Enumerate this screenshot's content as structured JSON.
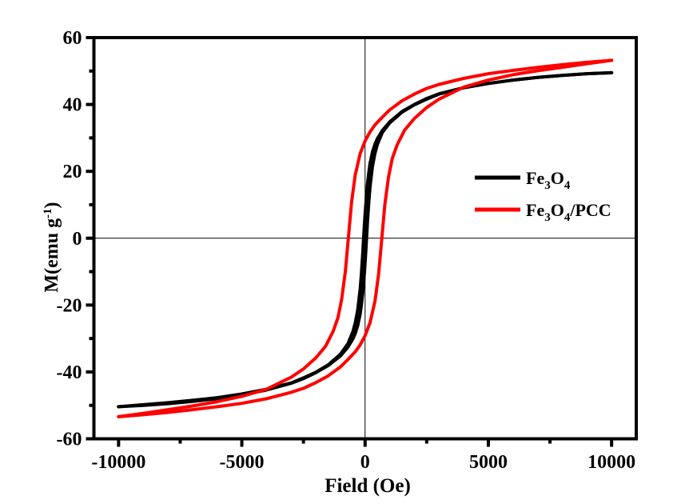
{
  "figure": {
    "background_color": "#ffffff",
    "axis_color": "#000000"
  },
  "chart_data": {
    "type": "line",
    "title": "",
    "xlabel": "Field (Oe)",
    "ylabel": "M(emu g-1)",
    "ylabel_parts": {
      "main": "M(emu g",
      "sup": "-1",
      "close": ")"
    },
    "xlim": [
      -11000,
      11000
    ],
    "ylim": [
      -60,
      60
    ],
    "x_major_ticks": [
      -10000,
      -5000,
      0,
      5000,
      10000
    ],
    "x_tick_labels": [
      "-10000",
      "-5000",
      "0",
      "5000",
      "10000"
    ],
    "x_minor_ticks": [
      -7500,
      -2500,
      2500,
      7500
    ],
    "y_major_ticks": [
      60,
      40,
      20,
      0,
      -20,
      -40,
      -60
    ],
    "y_tick_labels": [
      "60",
      "40",
      "20",
      "0",
      "-20",
      "-40",
      "-60"
    ],
    "y_minor_ticks": [
      50,
      30,
      10,
      -10,
      -30,
      -50
    ],
    "grid": "off",
    "zero_cross_lines": true,
    "legend": {
      "position": "middle-right",
      "entries": [
        "Fe3O4",
        "Fe3O4/PCC"
      ]
    },
    "series": [
      {
        "name": "Fe3O4",
        "color": "#000000",
        "label_parts": {
          "p1": "Fe",
          "s1": "3",
          "p2": "O",
          "s2": "4",
          "p3": ""
        },
        "ascending": [
          [
            -10000,
            -50.4
          ],
          [
            -9000,
            -50.0
          ],
          [
            -8000,
            -49.5
          ],
          [
            -7000,
            -48.8
          ],
          [
            -6000,
            -48.0
          ],
          [
            -5000,
            -46.9
          ],
          [
            -4000,
            -45.4
          ],
          [
            -3000,
            -43.4
          ],
          [
            -2500,
            -42.0
          ],
          [
            -2000,
            -40.2
          ],
          [
            -1500,
            -38.1
          ],
          [
            -1000,
            -35.2
          ],
          [
            -700,
            -32.6
          ],
          [
            -500,
            -30.2
          ],
          [
            -400,
            -28.5
          ],
          [
            -300,
            -26.2
          ],
          [
            -200,
            -22.7
          ],
          [
            -150,
            -20.0
          ],
          [
            -100,
            -16.7
          ],
          [
            -50,
            -12.6
          ],
          [
            0,
            -7.3
          ],
          [
            30,
            -3.8
          ],
          [
            60,
            0
          ],
          [
            100,
            5.0
          ],
          [
            150,
            10.7
          ],
          [
            200,
            15.2
          ],
          [
            300,
            21.5
          ],
          [
            400,
            25.4
          ],
          [
            500,
            28.1
          ],
          [
            700,
            31.6
          ],
          [
            1000,
            34.5
          ],
          [
            1500,
            37.7
          ],
          [
            2000,
            39.9
          ],
          [
            2500,
            41.6
          ],
          [
            3000,
            43.1
          ],
          [
            4000,
            45.0
          ],
          [
            5000,
            46.3
          ],
          [
            6000,
            47.3
          ],
          [
            7000,
            48.1
          ],
          [
            8000,
            48.7
          ],
          [
            9000,
            49.2
          ],
          [
            10000,
            49.5
          ]
        ],
        "descending": [
          [
            10000,
            49.5
          ],
          [
            9000,
            49.2
          ],
          [
            8000,
            48.7
          ],
          [
            7000,
            48.1
          ],
          [
            6000,
            47.3
          ],
          [
            5000,
            46.3
          ],
          [
            4000,
            45.0
          ],
          [
            3000,
            43.2
          ],
          [
            2500,
            41.8
          ],
          [
            2000,
            40.0
          ],
          [
            1500,
            37.9
          ],
          [
            1000,
            34.8
          ],
          [
            700,
            32.2
          ],
          [
            500,
            29.8
          ],
          [
            400,
            28.1
          ],
          [
            300,
            25.8
          ],
          [
            200,
            22.3
          ],
          [
            150,
            19.6
          ],
          [
            100,
            16.3
          ],
          [
            50,
            12.2
          ],
          [
            0,
            7.3
          ],
          [
            -30,
            3.8
          ],
          [
            -60,
            0
          ],
          [
            -100,
            -5.0
          ],
          [
            -150,
            -10.7
          ],
          [
            -200,
            -15.2
          ],
          [
            -300,
            -21.5
          ],
          [
            -400,
            -25.4
          ],
          [
            -500,
            -28.1
          ],
          [
            -700,
            -31.6
          ],
          [
            -1000,
            -34.7
          ],
          [
            -1500,
            -37.9
          ],
          [
            -2000,
            -40.1
          ],
          [
            -2500,
            -41.8
          ],
          [
            -3000,
            -43.3
          ],
          [
            -4000,
            -45.2
          ],
          [
            -5000,
            -46.6
          ],
          [
            -6000,
            -47.7
          ],
          [
            -7000,
            -48.5
          ],
          [
            -8000,
            -49.2
          ],
          [
            -9000,
            -49.8
          ],
          [
            -10000,
            -50.4
          ]
        ]
      },
      {
        "name": "Fe3O4/PCC",
        "color": "#ff0000",
        "label_parts": {
          "p1": "Fe",
          "s1": "3",
          "p2": "O",
          "s2": "4",
          "p3": "/PCC"
        },
        "ascending": [
          [
            -10000,
            -53.4
          ],
          [
            -9000,
            -52.8
          ],
          [
            -8000,
            -52.1
          ],
          [
            -7000,
            -51.3
          ],
          [
            -6000,
            -50.4
          ],
          [
            -5000,
            -49.4
          ],
          [
            -4000,
            -48.0
          ],
          [
            -3000,
            -46.1
          ],
          [
            -2500,
            -44.9
          ],
          [
            -2000,
            -43.2
          ],
          [
            -1500,
            -41.2
          ],
          [
            -1000,
            -38.5
          ],
          [
            -700,
            -36.3
          ],
          [
            -400,
            -34.0
          ],
          [
            -200,
            -31.9
          ],
          [
            0,
            -29.1
          ],
          [
            200,
            -25.3
          ],
          [
            400,
            -18.9
          ],
          [
            550,
            -10.7
          ],
          [
            680,
            0
          ],
          [
            800,
            9.9
          ],
          [
            950,
            18.2
          ],
          [
            1100,
            23.8
          ],
          [
            1300,
            27.9
          ],
          [
            1600,
            32.3
          ],
          [
            2000,
            35.8
          ],
          [
            2500,
            39.1
          ],
          [
            3000,
            41.6
          ],
          [
            4000,
            45.2
          ],
          [
            5000,
            47.3
          ],
          [
            6000,
            48.9
          ],
          [
            7000,
            50.1
          ],
          [
            8000,
            51.1
          ],
          [
            9000,
            52.2
          ],
          [
            10000,
            53.2
          ]
        ],
        "descending": [
          [
            10000,
            53.2
          ],
          [
            9000,
            52.6
          ],
          [
            8000,
            51.9
          ],
          [
            7000,
            51.1
          ],
          [
            6000,
            50.2
          ],
          [
            5000,
            49.2
          ],
          [
            4000,
            47.8
          ],
          [
            3000,
            46.0
          ],
          [
            2500,
            44.8
          ],
          [
            2000,
            43.1
          ],
          [
            1500,
            41.1
          ],
          [
            1000,
            38.4
          ],
          [
            700,
            36.2
          ],
          [
            400,
            33.9
          ],
          [
            200,
            31.8
          ],
          [
            0,
            29.1
          ],
          [
            -200,
            25.3
          ],
          [
            -400,
            18.9
          ],
          [
            -550,
            10.7
          ],
          [
            -680,
            0
          ],
          [
            -800,
            -9.9
          ],
          [
            -950,
            -18.2
          ],
          [
            -1100,
            -23.8
          ],
          [
            -1300,
            -27.9
          ],
          [
            -1600,
            -32.3
          ],
          [
            -2000,
            -35.8
          ],
          [
            -2500,
            -39.1
          ],
          [
            -3000,
            -41.6
          ],
          [
            -4000,
            -45.2
          ],
          [
            -5000,
            -47.3
          ],
          [
            -6000,
            -48.9
          ],
          [
            -7000,
            -50.2
          ],
          [
            -8000,
            -51.3
          ],
          [
            -9000,
            -52.4
          ],
          [
            -10000,
            -53.4
          ]
        ]
      }
    ]
  }
}
